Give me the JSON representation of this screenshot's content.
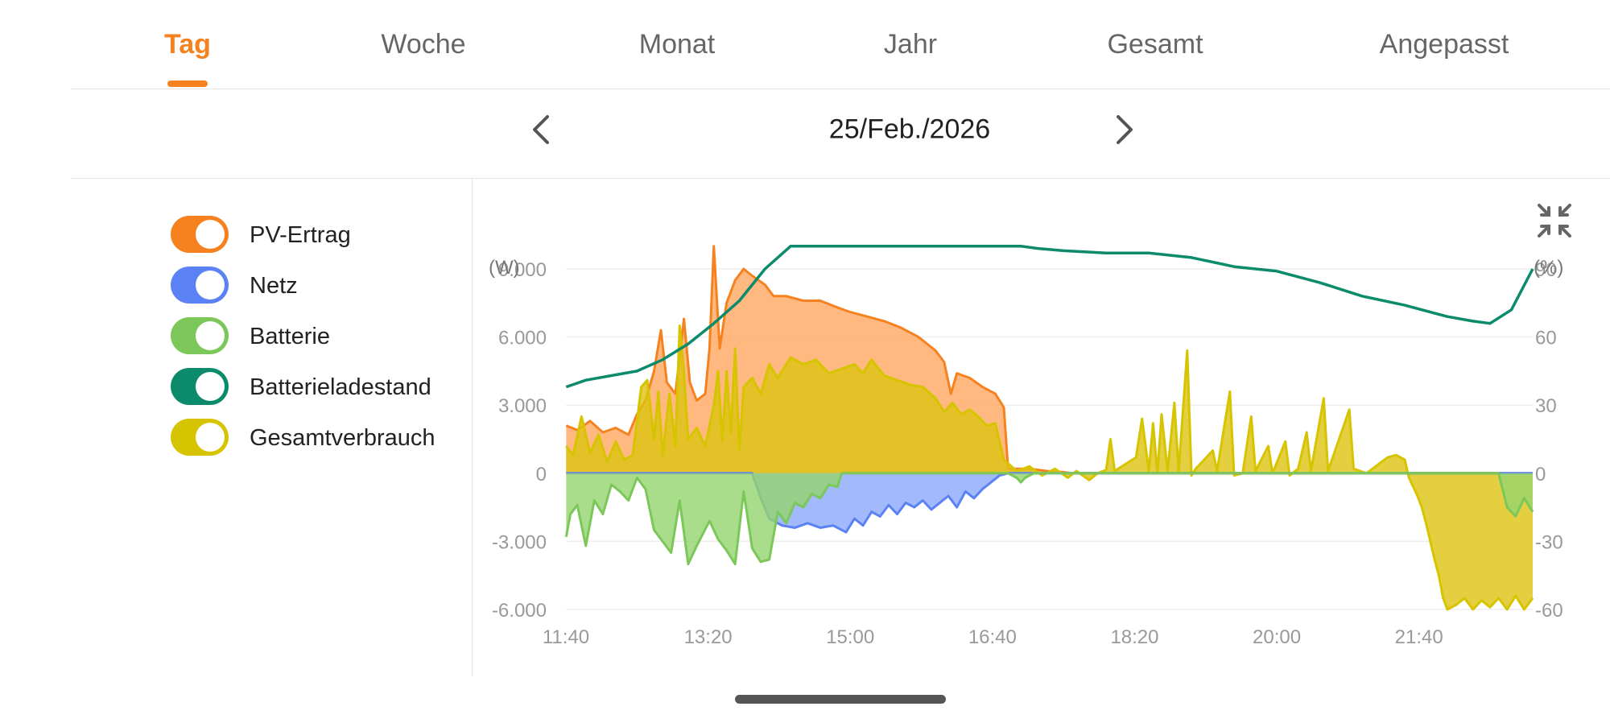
{
  "tabs": [
    {
      "label": "Tag",
      "active": true
    },
    {
      "label": "Woche",
      "active": false
    },
    {
      "label": "Monat",
      "active": false
    },
    {
      "label": "Jahr",
      "active": false
    },
    {
      "label": "Gesamt",
      "active": false
    },
    {
      "label": "Angepasst",
      "active": false
    }
  ],
  "date": {
    "label": "25/Feb./2026",
    "prev_icon": "chevron-left-icon",
    "next_icon": "chevron-right-icon"
  },
  "legend": [
    {
      "label": "PV-Ertrag",
      "color": "#f5821f",
      "enabled": true
    },
    {
      "label": "Netz",
      "color": "#5b82f5",
      "enabled": true
    },
    {
      "label": "Batterie",
      "color": "#7cc75a",
      "enabled": true
    },
    {
      "label": "Batterieladestand",
      "color": "#0b8a6c",
      "enabled": true
    },
    {
      "label": "Gesamtverbrauch",
      "color": "#d6c400",
      "enabled": true
    }
  ],
  "collapse_icon": "collapse-arrows-icon",
  "chart_data": {
    "type": "area",
    "y_left_unit": "(W)",
    "y_right_unit": "(%)",
    "y_left_ticks": [
      "9.000",
      "6.000",
      "3.000",
      "0",
      "-3.000",
      "-6.000"
    ],
    "y_right_ticks": [
      "90",
      "60",
      "30",
      "0",
      "-30",
      "-60"
    ],
    "y_left_range": [
      -6000,
      9000
    ],
    "y_right_range": [
      -60,
      90
    ],
    "x_ticks": [
      "11:40",
      "13:20",
      "15:00",
      "16:40",
      "18:20",
      "20:00",
      "21:40"
    ],
    "x_range_hours": [
      11.6667,
      23.0
    ],
    "grid": true,
    "series": [
      {
        "name": "PV-Ertrag",
        "axis": "left",
        "color": "#f5821f",
        "fill": "#ffa860",
        "points": [
          [
            11.67,
            2100
          ],
          [
            11.8,
            1900
          ],
          [
            11.95,
            2300
          ],
          [
            12.1,
            1800
          ],
          [
            12.25,
            2000
          ],
          [
            12.4,
            1700
          ],
          [
            12.5,
            2600
          ],
          [
            12.6,
            3200
          ],
          [
            12.7,
            4500
          ],
          [
            12.78,
            6300
          ],
          [
            12.85,
            4000
          ],
          [
            12.95,
            3500
          ],
          [
            13.05,
            6800
          ],
          [
            13.12,
            4000
          ],
          [
            13.2,
            3200
          ],
          [
            13.3,
            3500
          ],
          [
            13.35,
            5500
          ],
          [
            13.4,
            10000
          ],
          [
            13.47,
            5500
          ],
          [
            13.55,
            7500
          ],
          [
            13.65,
            8500
          ],
          [
            13.75,
            9000
          ],
          [
            13.85,
            8700
          ],
          [
            14.0,
            8300
          ],
          [
            14.1,
            7800
          ],
          [
            14.25,
            7800
          ],
          [
            14.45,
            7600
          ],
          [
            14.65,
            7600
          ],
          [
            14.85,
            7300
          ],
          [
            15.0,
            7100
          ],
          [
            15.2,
            6900
          ],
          [
            15.4,
            6700
          ],
          [
            15.6,
            6400
          ],
          [
            15.8,
            6000
          ],
          [
            16.0,
            5400
          ],
          [
            16.1,
            4900
          ],
          [
            16.18,
            3500
          ],
          [
            16.25,
            4400
          ],
          [
            16.4,
            4200
          ],
          [
            16.55,
            3800
          ],
          [
            16.7,
            3500
          ],
          [
            16.8,
            2900
          ],
          [
            16.85,
            200
          ],
          [
            17.1,
            200
          ],
          [
            17.3,
            100
          ],
          [
            17.5,
            50
          ],
          [
            17.6,
            0
          ],
          [
            23.0,
            0
          ]
        ]
      },
      {
        "name": "Gesamtverbrauch",
        "axis": "left",
        "color": "#d6c400",
        "fill": "#dcc310",
        "points": [
          [
            11.67,
            1200
          ],
          [
            11.75,
            800
          ],
          [
            11.85,
            2500
          ],
          [
            11.95,
            900
          ],
          [
            12.05,
            1700
          ],
          [
            12.15,
            500
          ],
          [
            12.25,
            1400
          ],
          [
            12.35,
            600
          ],
          [
            12.45,
            800
          ],
          [
            12.55,
            3800
          ],
          [
            12.62,
            4100
          ],
          [
            12.7,
            1500
          ],
          [
            12.75,
            3600
          ],
          [
            12.8,
            800
          ],
          [
            12.88,
            3500
          ],
          [
            12.95,
            1200
          ],
          [
            13.0,
            6500
          ],
          [
            13.05,
            4500
          ],
          [
            13.1,
            1500
          ],
          [
            13.2,
            2000
          ],
          [
            13.3,
            1200
          ],
          [
            13.4,
            3000
          ],
          [
            13.45,
            4500
          ],
          [
            13.5,
            1400
          ],
          [
            13.55,
            4500
          ],
          [
            13.6,
            1800
          ],
          [
            13.65,
            5500
          ],
          [
            13.7,
            1000
          ],
          [
            13.75,
            3800
          ],
          [
            13.85,
            4200
          ],
          [
            13.95,
            3500
          ],
          [
            14.05,
            4800
          ],
          [
            14.15,
            4200
          ],
          [
            14.3,
            5100
          ],
          [
            14.45,
            4800
          ],
          [
            14.6,
            5000
          ],
          [
            14.75,
            4400
          ],
          [
            14.9,
            4600
          ],
          [
            15.05,
            4800
          ],
          [
            15.15,
            4400
          ],
          [
            15.25,
            5000
          ],
          [
            15.4,
            4300
          ],
          [
            15.55,
            4100
          ],
          [
            15.7,
            3900
          ],
          [
            15.85,
            3800
          ],
          [
            16.0,
            3300
          ],
          [
            16.1,
            2700
          ],
          [
            16.2,
            3100
          ],
          [
            16.3,
            2600
          ],
          [
            16.4,
            2800
          ],
          [
            16.5,
            2500
          ],
          [
            16.6,
            2100
          ],
          [
            16.7,
            2200
          ],
          [
            16.8,
            600
          ],
          [
            16.95,
            100
          ],
          [
            17.1,
            300
          ],
          [
            17.25,
            -100
          ],
          [
            17.4,
            200
          ],
          [
            17.55,
            -200
          ],
          [
            17.65,
            100
          ],
          [
            17.8,
            -300
          ],
          [
            17.9,
            0
          ],
          [
            18.0,
            150
          ],
          [
            18.05,
            1500
          ],
          [
            18.1,
            100
          ],
          [
            18.35,
            700
          ],
          [
            18.42,
            2400
          ],
          [
            18.5,
            100
          ],
          [
            18.55,
            2200
          ],
          [
            18.6,
            0
          ],
          [
            18.65,
            2600
          ],
          [
            18.72,
            100
          ],
          [
            18.8,
            3100
          ],
          [
            18.85,
            100
          ],
          [
            18.95,
            5400
          ],
          [
            19.0,
            -100
          ],
          [
            19.05,
            200
          ],
          [
            19.25,
            1000
          ],
          [
            19.3,
            100
          ],
          [
            19.45,
            3600
          ],
          [
            19.5,
            -100
          ],
          [
            19.6,
            0
          ],
          [
            19.7,
            2500
          ],
          [
            19.75,
            100
          ],
          [
            19.9,
            1200
          ],
          [
            19.95,
            0
          ],
          [
            20.1,
            1400
          ],
          [
            20.15,
            -100
          ],
          [
            20.25,
            200
          ],
          [
            20.35,
            1800
          ],
          [
            20.4,
            100
          ],
          [
            20.55,
            3300
          ],
          [
            20.6,
            100
          ],
          [
            20.85,
            2800
          ],
          [
            20.9,
            200
          ],
          [
            21.05,
            0
          ],
          [
            21.3,
            700
          ],
          [
            21.4,
            800
          ],
          [
            21.5,
            600
          ],
          [
            21.55,
            -200
          ],
          [
            21.6,
            -600
          ],
          [
            21.65,
            -1000
          ],
          [
            21.7,
            -1500
          ],
          [
            21.75,
            -2200
          ],
          [
            21.8,
            -3000
          ],
          [
            21.85,
            -3800
          ],
          [
            21.9,
            -4500
          ],
          [
            21.95,
            -5500
          ],
          [
            22.0,
            -6000
          ],
          [
            22.1,
            -5800
          ],
          [
            22.2,
            -5500
          ],
          [
            22.3,
            -6000
          ],
          [
            22.4,
            -5600
          ],
          [
            22.5,
            -5900
          ],
          [
            22.6,
            -5500
          ],
          [
            22.7,
            -6000
          ],
          [
            22.8,
            -5400
          ],
          [
            22.9,
            -6000
          ],
          [
            23.0,
            -5500
          ]
        ]
      },
      {
        "name": "Netz",
        "axis": "left",
        "color": "#5b82f5",
        "fill": "#8ba8fa",
        "points": [
          [
            11.67,
            0
          ],
          [
            13.85,
            0
          ],
          [
            13.95,
            -1100
          ],
          [
            14.05,
            -2000
          ],
          [
            14.2,
            -2300
          ],
          [
            14.35,
            -2400
          ],
          [
            14.5,
            -2200
          ],
          [
            14.65,
            -2400
          ],
          [
            14.8,
            -2300
          ],
          [
            14.95,
            -2600
          ],
          [
            15.05,
            -2000
          ],
          [
            15.15,
            -2300
          ],
          [
            15.25,
            -1700
          ],
          [
            15.35,
            -1900
          ],
          [
            15.45,
            -1400
          ],
          [
            15.55,
            -1800
          ],
          [
            15.65,
            -1300
          ],
          [
            15.75,
            -1500
          ],
          [
            15.85,
            -1200
          ],
          [
            15.95,
            -1600
          ],
          [
            16.05,
            -1300
          ],
          [
            16.15,
            -1000
          ],
          [
            16.25,
            -1500
          ],
          [
            16.35,
            -800
          ],
          [
            16.45,
            -1100
          ],
          [
            16.55,
            -700
          ],
          [
            16.65,
            -400
          ],
          [
            16.75,
            -100
          ],
          [
            16.85,
            0
          ],
          [
            23.0,
            0
          ]
        ]
      },
      {
        "name": "Batterie",
        "axis": "left",
        "color": "#7cc75a",
        "fill": "#95d46e",
        "points": [
          [
            11.67,
            -2800
          ],
          [
            11.72,
            -1800
          ],
          [
            11.8,
            -1400
          ],
          [
            11.9,
            -3200
          ],
          [
            12.0,
            -1200
          ],
          [
            12.1,
            -1800
          ],
          [
            12.2,
            -500
          ],
          [
            12.3,
            -800
          ],
          [
            12.4,
            -1200
          ],
          [
            12.5,
            -200
          ],
          [
            12.6,
            -700
          ],
          [
            12.7,
            -2500
          ],
          [
            12.8,
            -3000
          ],
          [
            12.9,
            -3500
          ],
          [
            13.0,
            -1200
          ],
          [
            13.1,
            -4000
          ],
          [
            13.2,
            -3200
          ],
          [
            13.35,
            -2100
          ],
          [
            13.45,
            -2900
          ],
          [
            13.55,
            -3400
          ],
          [
            13.65,
            -4000
          ],
          [
            13.75,
            -800
          ],
          [
            13.85,
            -3300
          ],
          [
            13.95,
            -3900
          ],
          [
            14.05,
            -3800
          ],
          [
            14.15,
            -1700
          ],
          [
            14.25,
            -2200
          ],
          [
            14.35,
            -1300
          ],
          [
            14.45,
            -1500
          ],
          [
            14.55,
            -900
          ],
          [
            14.65,
            -1100
          ],
          [
            14.75,
            -500
          ],
          [
            14.85,
            -600
          ],
          [
            14.9,
            0
          ],
          [
            16.85,
            0
          ],
          [
            16.95,
            -200
          ],
          [
            17.0,
            -400
          ],
          [
            17.05,
            -200
          ],
          [
            17.15,
            0
          ],
          [
            22.6,
            0
          ],
          [
            22.7,
            -1500
          ],
          [
            22.8,
            -1900
          ],
          [
            22.9,
            -1100
          ],
          [
            23.0,
            -1700
          ]
        ]
      },
      {
        "name": "Batterieladestand",
        "axis": "right",
        "color": "#0b8a6c",
        "points": [
          [
            11.67,
            38
          ],
          [
            11.9,
            41
          ],
          [
            12.2,
            43
          ],
          [
            12.5,
            45
          ],
          [
            12.8,
            50
          ],
          [
            13.1,
            57
          ],
          [
            13.4,
            66
          ],
          [
            13.7,
            76
          ],
          [
            14.0,
            90
          ],
          [
            14.3,
            100
          ],
          [
            15.5,
            100
          ],
          [
            16.5,
            100
          ],
          [
            17.0,
            100
          ],
          [
            17.2,
            99
          ],
          [
            17.5,
            98
          ],
          [
            18.0,
            97
          ],
          [
            18.5,
            97
          ],
          [
            19.0,
            95
          ],
          [
            19.5,
            91
          ],
          [
            20.0,
            89
          ],
          [
            20.5,
            84
          ],
          [
            21.0,
            78
          ],
          [
            21.5,
            74
          ],
          [
            22.0,
            69
          ],
          [
            22.3,
            67
          ],
          [
            22.5,
            66
          ],
          [
            22.75,
            72
          ],
          [
            23.0,
            90
          ]
        ]
      }
    ]
  }
}
